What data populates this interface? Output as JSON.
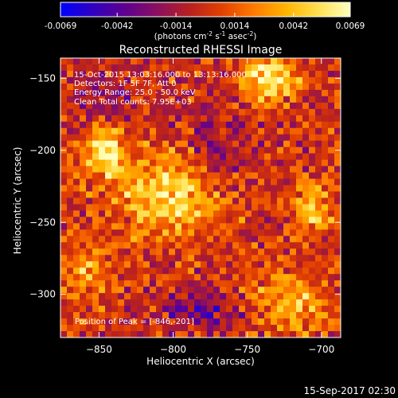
{
  "colorbar": {
    "ticks": [
      "-0.0069",
      "-0.0042",
      "-0.0014",
      "0.0014",
      "0.0042",
      "0.0069"
    ],
    "vmin": -0.0069,
    "vmax": 0.0069,
    "unit_label": "(photons cm",
    "unit_exp1": "-2",
    "unit_mid": " s",
    "unit_exp2": "-1",
    "unit_mid2": " asec",
    "unit_exp3": "-2",
    "unit_end": ")",
    "colormap": [
      "#0000ff",
      "#3000c0",
      "#5e0090",
      "#8a1060",
      "#b82020",
      "#e24000",
      "#ff7a00",
      "#ffb400",
      "#ffe050",
      "#ffffc0"
    ]
  },
  "chart_data": {
    "type": "heatmap",
    "title": "Reconstructed RHESSI Image",
    "xlabel": "Heliocentric X (arcsec)",
    "ylabel": "Heliocentric Y (arcsec)",
    "xlim": [
      -876,
      -687
    ],
    "ylim": [
      -330,
      -136
    ],
    "xticks": [
      -850,
      -800,
      -750,
      -700
    ],
    "yticks": [
      -150,
      -200,
      -250,
      -300
    ],
    "xtick_labels": [
      "−850",
      "−800",
      "−750",
      "−700"
    ],
    "ytick_labels": [
      "−150",
      "−200",
      "−250",
      "−300"
    ],
    "info_lines": [
      "15-Oct-2015 13:03:16.000 to 13:13:16.000",
      "Detectors: 1F 5F 7F, Att 0",
      "Energy Range: 25.0 - 50.0 keV",
      "Clean     Total counts: 7.95E+03"
    ],
    "peak_label": "Position of Peak = [-846,-201]",
    "peak": [
      -846,
      -201
    ],
    "sources": [
      {
        "x": -803,
        "y": -231,
        "amp": 0.0055,
        "sx": 26,
        "sy": 20
      },
      {
        "x": -846,
        "y": -201,
        "amp": 0.0069,
        "sx": 9,
        "sy": 11
      },
      {
        "x": -735,
        "y": -150,
        "amp": 0.0062,
        "sx": 14,
        "sy": 10
      },
      {
        "x": -706,
        "y": -240,
        "amp": 0.004,
        "sx": 10,
        "sy": 14
      },
      {
        "x": -720,
        "y": -305,
        "amp": 0.0045,
        "sx": 16,
        "sy": 14
      },
      {
        "x": -860,
        "y": -285,
        "amp": 0.003,
        "sx": 12,
        "sy": 18
      },
      {
        "x": -780,
        "y": -310,
        "amp": -0.003,
        "sx": 18,
        "sy": 10
      },
      {
        "x": -770,
        "y": -205,
        "amp": -0.0025,
        "sx": 14,
        "sy": 22
      },
      {
        "x": -845,
        "y": -160,
        "amp": -0.002,
        "sx": 14,
        "sy": 10
      }
    ]
  },
  "footer": {
    "timestamp": "15-Sep-2017 02:30"
  }
}
